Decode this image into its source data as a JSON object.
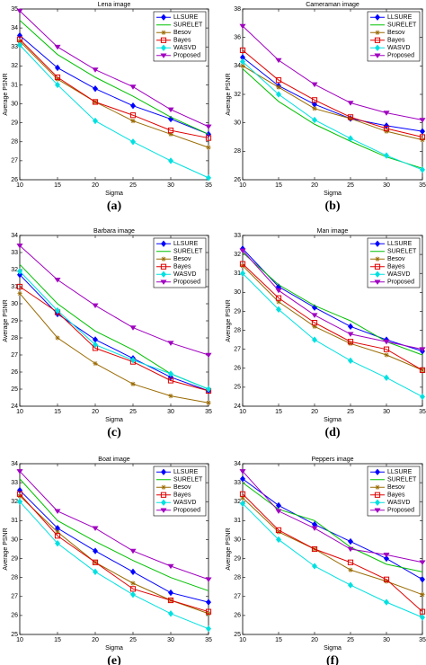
{
  "chart_data": [
    {
      "type": "line",
      "title": "Lena image",
      "xlabel": "Sigma",
      "ylabel": "Average PSNR",
      "label": "(a)",
      "x": [
        10,
        15,
        20,
        25,
        30,
        35
      ],
      "xlim": [
        10,
        35
      ],
      "xticks": [
        10,
        15,
        20,
        25,
        30,
        35
      ],
      "ylim": [
        26,
        35
      ],
      "yticks": [
        26,
        27,
        28,
        29,
        30,
        31,
        32,
        33,
        34,
        35
      ],
      "legend": "upper right",
      "series": [
        {
          "name": "LLSURE",
          "color": "#0000ff",
          "marker": "diamond",
          "values": [
            33.6,
            31.9,
            30.8,
            29.9,
            29.2,
            28.4
          ]
        },
        {
          "name": "SURELET",
          "color": "#00c000",
          "marker": "none",
          "values": [
            34.4,
            32.6,
            31.4,
            30.4,
            29.3,
            28.4
          ]
        },
        {
          "name": "Besov",
          "color": "#9a6a00",
          "marker": "star",
          "values": [
            33.3,
            31.3,
            30.1,
            29.1,
            28.4,
            27.7
          ]
        },
        {
          "name": "Bayes",
          "color": "#e00000",
          "marker": "square",
          "values": [
            33.4,
            31.4,
            30.1,
            29.4,
            28.6,
            28.2
          ]
        },
        {
          "name": "WASVD",
          "color": "#00e0e0",
          "marker": "diamond",
          "values": [
            33.1,
            31.0,
            29.1,
            28.0,
            27.0,
            26.1
          ]
        },
        {
          "name": "Proposed",
          "color": "#a000c0",
          "marker": "triangle-down",
          "values": [
            34.9,
            33.0,
            31.8,
            30.9,
            29.7,
            28.8
          ]
        }
      ]
    },
    {
      "type": "line",
      "title": "Cameraman image",
      "xlabel": "Sigma",
      "ylabel": "Average PSNR",
      "label": "(b)",
      "x": [
        10,
        15,
        20,
        25,
        30,
        35
      ],
      "xlim": [
        10,
        35
      ],
      "xticks": [
        10,
        15,
        20,
        25,
        30,
        35
      ],
      "ylim": [
        26,
        38
      ],
      "yticks": [
        26,
        28,
        30,
        32,
        34,
        36,
        38
      ],
      "legend": "upper right",
      "series": [
        {
          "name": "LLSURE",
          "color": "#0000ff",
          "marker": "diamond",
          "values": [
            34.6,
            32.6,
            31.3,
            30.3,
            29.8,
            29.4
          ]
        },
        {
          "name": "SURELET",
          "color": "#00c000",
          "marker": "none",
          "values": [
            33.8,
            31.5,
            29.9,
            28.7,
            27.6,
            26.8
          ]
        },
        {
          "name": "Besov",
          "color": "#9a6a00",
          "marker": "star",
          "values": [
            34.0,
            32.5,
            31.0,
            30.3,
            29.4,
            28.8
          ]
        },
        {
          "name": "Bayes",
          "color": "#e00000",
          "marker": "square",
          "values": [
            35.1,
            33.0,
            31.6,
            30.4,
            29.6,
            29.0
          ]
        },
        {
          "name": "WASVD",
          "color": "#00e0e0",
          "marker": "diamond",
          "values": [
            34.3,
            32.0,
            30.2,
            28.9,
            27.7,
            26.7
          ]
        },
        {
          "name": "Proposed",
          "color": "#a000c0",
          "marker": "triangle-down",
          "values": [
            36.8,
            34.4,
            32.7,
            31.4,
            30.7,
            30.2
          ]
        }
      ]
    },
    {
      "type": "line",
      "title": "Barbara image",
      "xlabel": "Sigma",
      "ylabel": "Average PSNR",
      "label": "(c)",
      "x": [
        10,
        15,
        20,
        25,
        30,
        35
      ],
      "xlim": [
        10,
        35
      ],
      "xticks": [
        10,
        15,
        20,
        25,
        30,
        35
      ],
      "ylim": [
        24,
        34
      ],
      "yticks": [
        24,
        25,
        26,
        27,
        28,
        29,
        30,
        31,
        32,
        33,
        34
      ],
      "legend": "upper right",
      "series": [
        {
          "name": "LLSURE",
          "color": "#0000ff",
          "marker": "diamond",
          "values": [
            31.7,
            29.4,
            27.9,
            26.8,
            25.7,
            24.9
          ]
        },
        {
          "name": "SURELET",
          "color": "#00c000",
          "marker": "none",
          "values": [
            32.3,
            30.0,
            28.4,
            27.3,
            25.9,
            25.0
          ]
        },
        {
          "name": "Besov",
          "color": "#9a6a00",
          "marker": "star",
          "values": [
            30.6,
            28.0,
            26.5,
            25.3,
            24.6,
            24.2
          ]
        },
        {
          "name": "Bayes",
          "color": "#e00000",
          "marker": "square",
          "values": [
            31.0,
            29.5,
            27.4,
            26.6,
            25.5,
            24.9
          ]
        },
        {
          "name": "WASVD",
          "color": "#00e0e0",
          "marker": "diamond",
          "values": [
            31.9,
            29.6,
            27.6,
            26.7,
            25.9,
            25.0
          ]
        },
        {
          "name": "Proposed",
          "color": "#a000c0",
          "marker": "triangle-down",
          "values": [
            33.4,
            31.4,
            29.9,
            28.6,
            27.7,
            27.0
          ]
        }
      ]
    },
    {
      "type": "line",
      "title": "Man image",
      "xlabel": "Sigma",
      "ylabel": "Average PSNR",
      "label": "(d)",
      "x": [
        10,
        15,
        20,
        25,
        30,
        35
      ],
      "xlim": [
        10,
        35
      ],
      "xticks": [
        10,
        15,
        20,
        25,
        30,
        35
      ],
      "ylim": [
        24,
        33
      ],
      "yticks": [
        24,
        25,
        26,
        27,
        28,
        29,
        30,
        31,
        32,
        33
      ],
      "legend": "upper right",
      "series": [
        {
          "name": "LLSURE",
          "color": "#0000ff",
          "marker": "diamond",
          "values": [
            32.3,
            30.3,
            29.2,
            28.2,
            27.5,
            26.9
          ]
        },
        {
          "name": "SURELET",
          "color": "#00c000",
          "marker": "none",
          "values": [
            32.1,
            30.4,
            29.3,
            28.5,
            27.4,
            26.7
          ]
        },
        {
          "name": "Besov",
          "color": "#9a6a00",
          "marker": "star",
          "values": [
            31.4,
            29.5,
            28.2,
            27.3,
            26.7,
            25.9
          ]
        },
        {
          "name": "Bayes",
          "color": "#e00000",
          "marker": "square",
          "values": [
            31.5,
            29.7,
            28.4,
            27.4,
            27.0,
            25.9
          ]
        },
        {
          "name": "WASVD",
          "color": "#00e0e0",
          "marker": "diamond",
          "values": [
            31.0,
            29.1,
            27.5,
            26.4,
            25.5,
            24.5
          ]
        },
        {
          "name": "Proposed",
          "color": "#a000c0",
          "marker": "triangle-down",
          "values": [
            32.2,
            30.1,
            28.8,
            27.8,
            27.4,
            27.0
          ]
        }
      ]
    },
    {
      "type": "line",
      "title": "Boat image",
      "xlabel": "Sigma",
      "ylabel": "Average PSNR",
      "label": "(e)",
      "x": [
        10,
        15,
        20,
        25,
        30,
        35
      ],
      "xlim": [
        10,
        35
      ],
      "xticks": [
        10,
        15,
        20,
        25,
        30,
        35
      ],
      "ylim": [
        25,
        34
      ],
      "yticks": [
        25,
        26,
        27,
        28,
        29,
        30,
        31,
        32,
        33,
        34
      ],
      "legend": "upper right",
      "series": [
        {
          "name": "LLSURE",
          "color": "#0000ff",
          "marker": "diamond",
          "values": [
            32.6,
            30.6,
            29.4,
            28.3,
            27.2,
            26.7
          ]
        },
        {
          "name": "SURELET",
          "color": "#00c000",
          "marker": "none",
          "values": [
            33.2,
            31.0,
            29.9,
            28.9,
            28.0,
            27.3
          ]
        },
        {
          "name": "Besov",
          "color": "#9a6a00",
          "marker": "star",
          "values": [
            32.3,
            30.4,
            28.8,
            27.7,
            26.8,
            26.1
          ]
        },
        {
          "name": "Bayes",
          "color": "#e00000",
          "marker": "square",
          "values": [
            32.4,
            30.2,
            28.8,
            27.4,
            26.8,
            26.2
          ]
        },
        {
          "name": "WASVD",
          "color": "#00e0e0",
          "marker": "diamond",
          "values": [
            32.0,
            29.8,
            28.3,
            27.1,
            26.1,
            25.3
          ]
        },
        {
          "name": "Proposed",
          "color": "#a000c0",
          "marker": "triangle-down",
          "values": [
            33.6,
            31.5,
            30.6,
            29.4,
            28.6,
            27.9
          ]
        }
      ]
    },
    {
      "type": "line",
      "title": "Peppers image",
      "xlabel": "Sigma",
      "ylabel": "Average PSNR",
      "label": "(f)",
      "x": [
        10,
        15,
        20,
        25,
        30,
        35
      ],
      "xlim": [
        10,
        35
      ],
      "xticks": [
        10,
        15,
        20,
        25,
        30,
        35
      ],
      "ylim": [
        25,
        34
      ],
      "yticks": [
        25,
        26,
        27,
        28,
        29,
        30,
        31,
        32,
        33,
        34
      ],
      "legend": "upper right",
      "series": [
        {
          "name": "LLSURE",
          "color": "#0000ff",
          "marker": "diamond",
          "values": [
            33.2,
            31.8,
            30.8,
            29.9,
            29.0,
            27.9
          ]
        },
        {
          "name": "SURELET",
          "color": "#00c000",
          "marker": "none",
          "values": [
            33.0,
            31.6,
            31.0,
            29.6,
            28.7,
            28.3
          ]
        },
        {
          "name": "Besov",
          "color": "#9a6a00",
          "marker": "star",
          "values": [
            32.2,
            30.4,
            29.5,
            28.4,
            27.8,
            27.1
          ]
        },
        {
          "name": "Bayes",
          "color": "#e00000",
          "marker": "square",
          "values": [
            32.4,
            30.5,
            29.5,
            28.8,
            27.9,
            26.2
          ]
        },
        {
          "name": "WASVD",
          "color": "#00e0e0",
          "marker": "diamond",
          "values": [
            31.9,
            30.0,
            28.6,
            27.6,
            26.7,
            25.9
          ]
        },
        {
          "name": "Proposed",
          "color": "#a000c0",
          "marker": "triangle-down",
          "values": [
            33.6,
            31.5,
            30.6,
            29.5,
            29.2,
            28.8
          ]
        }
      ]
    }
  ]
}
